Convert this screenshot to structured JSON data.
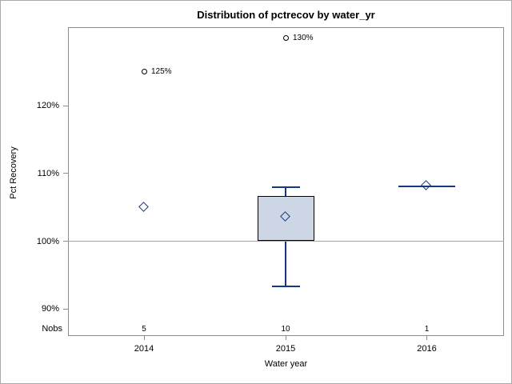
{
  "window": {
    "background": "#ffffff",
    "border_color": "#ababab"
  },
  "chart_data": {
    "type": "boxplot",
    "title": "Distribution of pctrecov by water_yr",
    "xlabel": "Water year",
    "ylabel": "Pct Recovery",
    "nobs_label": "Nobs",
    "reference_line": 100,
    "grid": false,
    "y_axis": {
      "min": 86.0,
      "max": 131.6,
      "ticks": [
        {
          "value": 90,
          "label": "90%"
        },
        {
          "value": 100,
          "label": "100%"
        },
        {
          "value": 110,
          "label": "110%"
        },
        {
          "value": 120,
          "label": "120%"
        }
      ]
    },
    "groups": [
      {
        "category": "2014",
        "nobs": "5",
        "mean": 105,
        "outliers": [
          {
            "value": 125,
            "label": "125%"
          }
        ]
      },
      {
        "category": "2015",
        "nobs": "10",
        "mean": 103.5,
        "median": 100,
        "q1": 100,
        "q3": 106.7,
        "whisker_low": 93.3,
        "whisker_high": 108,
        "outliers": [
          {
            "value": 130,
            "label": "130%"
          }
        ]
      },
      {
        "category": "2016",
        "nobs": "1",
        "mean": 108.1,
        "median": 108.1,
        "outliers": []
      }
    ],
    "colors": {
      "box_fill": "#ccd6e4",
      "box_border": "#000000",
      "whisker": "#15387f",
      "mean_marker": "#15387f",
      "outlier": "#000000",
      "frame": "#8c8c8c",
      "reference_line": "#a3a3a3",
      "text": "#000000"
    }
  }
}
